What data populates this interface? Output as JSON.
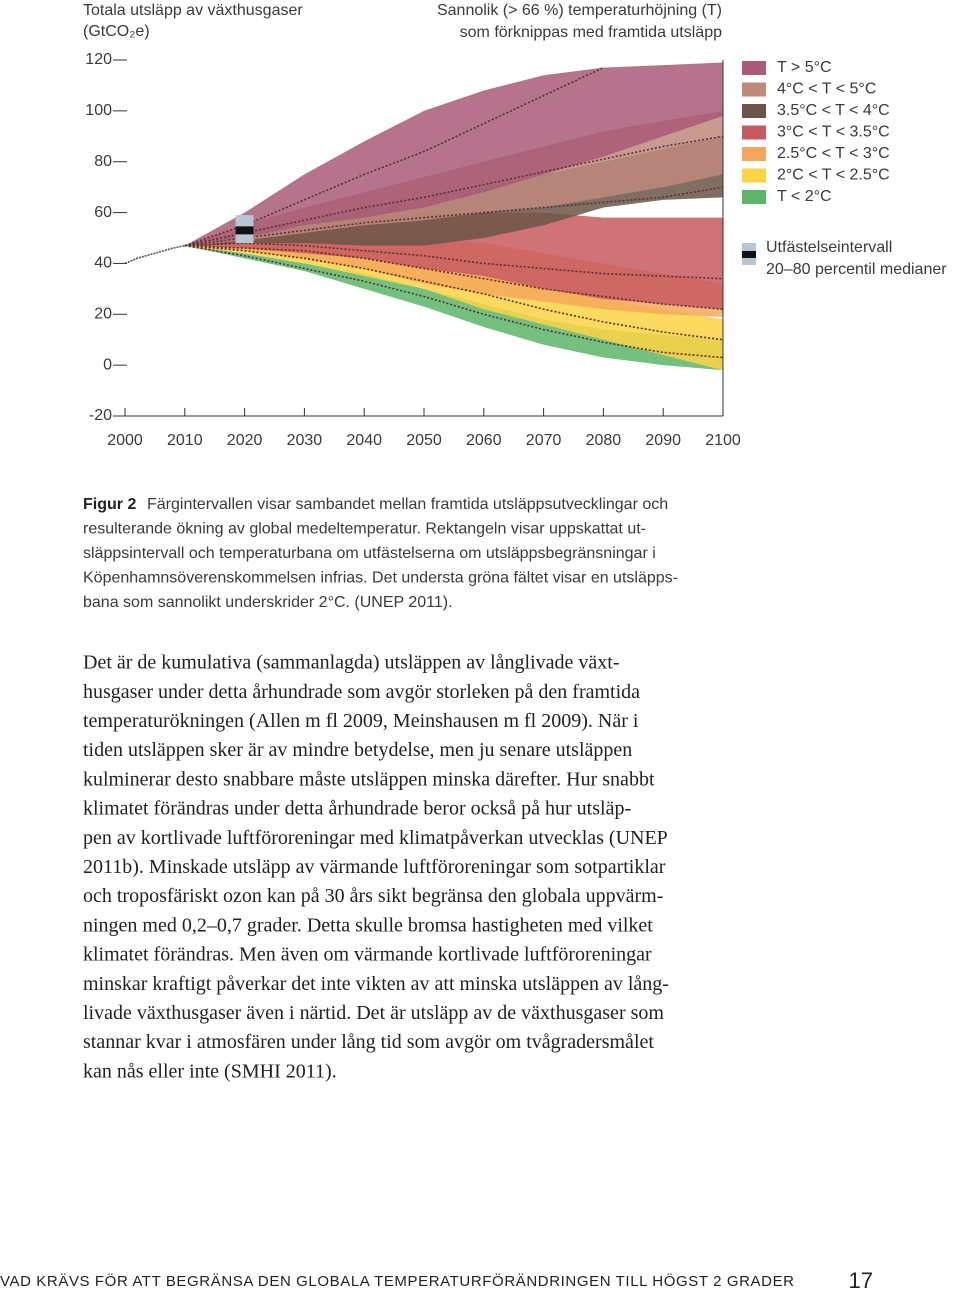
{
  "chart_data": {
    "type": "fan",
    "title": [
      "Sannolik (> 66 %) temperaturhöjning (T)",
      "som förknippas med framtida utsläpp"
    ],
    "y_label": [
      "Totala utsläpp av växthusgaser",
      "(GtCO₂e)"
    ],
    "xlim": [
      2000,
      2100
    ],
    "ylim": [
      -20,
      120
    ],
    "xticks": [
      2000,
      2010,
      2020,
      2030,
      2040,
      2050,
      2060,
      2070,
      2080,
      2090,
      2100
    ],
    "yticks": [
      -20,
      0,
      20,
      40,
      60,
      80,
      100,
      120
    ],
    "history": {
      "x": [
        2000,
        2002,
        2005,
        2008,
        2010
      ],
      "values": [
        40,
        42,
        44,
        46,
        47
      ]
    },
    "x": [
      2010,
      2020,
      2030,
      2040,
      2050,
      2060,
      2070,
      2080,
      2090,
      2100
    ],
    "series": [
      {
        "name": "T > 5°C",
        "color": "#a85a78",
        "low": [
          47,
          50,
          55,
          58,
          62,
          68,
          75,
          82,
          90,
          98
        ],
        "high": [
          47,
          60,
          75,
          88,
          100,
          108,
          114,
          117,
          118,
          119
        ],
        "median": [
          47,
          55,
          65,
          75,
          84,
          95,
          106,
          117,
          null,
          null
        ]
      },
      {
        "name": "4°C < T < 5°C",
        "color": "#bf8a7c",
        "low": [
          47,
          49,
          52,
          55,
          57,
          60,
          62,
          66,
          70,
          75
        ],
        "high": [
          47,
          55,
          62,
          68,
          74,
          80,
          86,
          92,
          96,
          100
        ],
        "median": [
          47,
          52,
          57,
          62,
          66,
          71,
          76,
          81,
          86,
          90
        ]
      },
      {
        "name": "3.5°C < T < 4°C",
        "color": "#6b5548",
        "low": [
          47,
          48,
          48,
          47,
          47,
          50,
          55,
          62,
          65,
          66
        ],
        "high": [
          47,
          52,
          57,
          62,
          66,
          70,
          75,
          80,
          85,
          90
        ],
        "median": [
          47,
          50,
          53,
          56,
          58,
          60,
          62,
          64,
          66,
          70
        ]
      },
      {
        "name": "3°C < T < 3.5°C",
        "color": "#c85a5f",
        "low": [
          47,
          46,
          44,
          42,
          38,
          35,
          30,
          26,
          24,
          22
        ],
        "high": [
          47,
          50,
          55,
          58,
          60,
          60,
          60,
          58,
          58,
          58
        ],
        "median": [
          47,
          48,
          47,
          45,
          43,
          40,
          38,
          36,
          35,
          34
        ]
      },
      {
        "name": "2.5°C < T < 3°C",
        "color": "#f4a75a",
        "low": [
          47,
          45,
          42,
          38,
          32,
          28,
          25,
          22,
          20,
          19
        ],
        "high": [
          47,
          48,
          50,
          50,
          50,
          48,
          44,
          40,
          36,
          32
        ],
        "median": [
          47,
          46,
          45,
          42,
          38,
          34,
          30,
          27,
          24,
          22
        ]
      },
      {
        "name": "2°C < T < 2.5°C",
        "color": "#fcd444",
        "low": [
          47,
          44,
          40,
          35,
          30,
          22,
          16,
          10,
          4,
          -2
        ],
        "high": [
          47,
          47,
          46,
          44,
          40,
          36,
          30,
          26,
          22,
          18
        ],
        "median": [
          47,
          45,
          42,
          38,
          33,
          28,
          22,
          17,
          13,
          10
        ]
      },
      {
        "name": "T < 2°C",
        "color": "#5cb569",
        "low": [
          47,
          42,
          37,
          30,
          23,
          15,
          8,
          3,
          0,
          -2
        ],
        "high": [
          47,
          44,
          40,
          36,
          30,
          24,
          18,
          14,
          12,
          10
        ],
        "median": [
          47,
          43,
          38,
          33,
          27,
          20,
          14,
          9,
          5,
          3
        ]
      }
    ],
    "pledge": {
      "name": [
        "Utfästelseintervall",
        "20–80 percentil medianer"
      ],
      "x": 2020,
      "low": 48,
      "high": 59,
      "median": 53
    }
  },
  "caption": {
    "label": "Figur 2",
    "lines": [
      "Färgintervallen visar sambandet mellan framtida utsläppsutvecklingar och",
      "resulterande ökning av global medeltemperatur. Rektangeln visar uppskattat ut-",
      "släppsintervall och temperaturbana om utfästelserna om utsläppsbegränsningar i",
      "Köpenhamnsöverenskommelsen infrias. Det understa gröna fältet visar en utsläpps-",
      "bana som sannolikt underskrider 2°C. (UNEP 2011)."
    ]
  },
  "body": {
    "lines": [
      "Det är de kumulativa (sammanlagda) utsläppen av långlivade växt-",
      "husgaser under detta århundrade som avgör storleken på den framtida",
      "temperaturökningen (Allen m fl 2009, Meinshausen m fl 2009). När i",
      "tiden utsläppen sker är av mindre betydelse, men ju senare utsläppen",
      "kulminerar desto snabbare måste utsläppen minska därefter. Hur snabbt",
      "klimatet förändras under detta århundrade beror också på hur utsläp-",
      "pen av kortlivade luftföroreningar med klimatpåverkan utvecklas (UNEP",
      "2011b). Minskade utsläpp av värmande luftföroreningar som sotpartiklar",
      "och troposfäriskt ozon kan på 30 års sikt begränsa den globala uppvärm-",
      "ningen med 0,2–0,7 grader. Detta skulle bromsa hastigheten med vilket",
      "klimatet förändras. Men även om värmande kortlivade luftföroreningar",
      "minskar kraftigt påverkar det inte vikten av att minska utsläppen av lång-",
      "livade växthusgaser även i närtid. Det är utsläpp av de växthusgaser som",
      "stannar kvar i atmosfären under lång tid som avgör om tvågradersmålet",
      "kan nås eller inte (SMHI 2011)."
    ]
  },
  "footer": {
    "title": "VAD KRÄVS FÖR ATT BEGRÄNSA DEN GLOBALA TEMPERATURFÖRÄNDRINGEN TILL HÖGST 2 GRADER",
    "page": "17"
  }
}
